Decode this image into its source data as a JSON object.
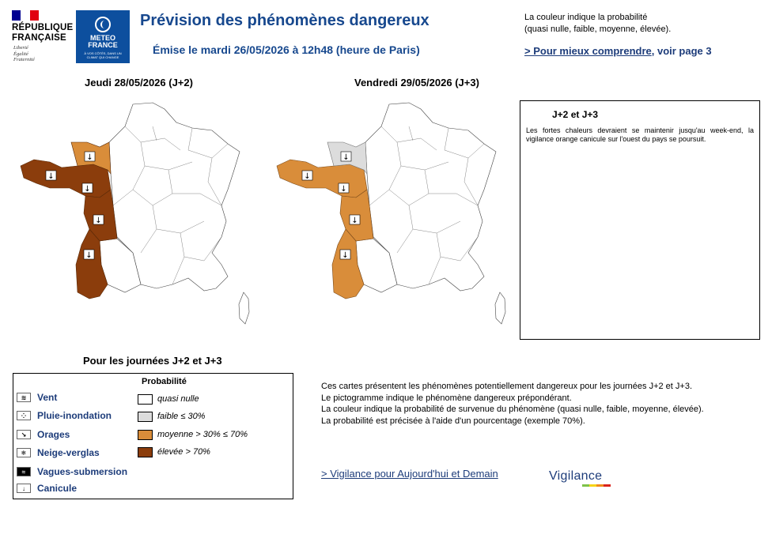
{
  "header": {
    "republic_line1": "RÉPUBLIQUE",
    "republic_line2": "FRANÇAISE",
    "motto": [
      "Liberté",
      "Égalité",
      "Fraternité"
    ],
    "logo_line1": "METEO",
    "logo_line2": "FRANCE",
    "logo_tagline": "À VOS CÔTÉS, DANS UN CLIMAT QUI CHANGE",
    "title": "Prévision des phénomènes dangereux",
    "emitted": "Émise le mardi 26/05/2026 à 12h48 (heure de Paris)"
  },
  "top_legend": {
    "line1": "La couleur indique la probabilité",
    "line2": "(quasi nulle, faible, moyenne, élevée).",
    "link_text": "> Pour mieux comprendre",
    "link_suffix": ", voir page 3"
  },
  "maps": [
    {
      "title": "Jeudi 28/05/2026 (J+2)"
    },
    {
      "title": "Vendredi 29/05/2026 (J+3)"
    }
  ],
  "comment": {
    "title": "J+2 et J+3",
    "body": "Les fortes chaleurs devraient se maintenir jusqu'au week-end, la vigilance orange canicule sur l'ouest du pays se poursuit."
  },
  "legend": {
    "title": "Pour les journées J+2 et J+3",
    "prob_title": "Probabilité",
    "phenomena": [
      {
        "label": "Vent",
        "icon": "wind-icon"
      },
      {
        "label": "Pluie-inondation",
        "icon": "rain-flood-icon"
      },
      {
        "label": "Orages",
        "icon": "thunderstorm-icon"
      },
      {
        "label": "Neige-verglas",
        "icon": "snow-ice-icon"
      },
      {
        "label": "Vagues-submersion",
        "icon": "waves-icon"
      },
      {
        "label": "Canicule",
        "icon": "thermometer-icon"
      }
    ],
    "probabilities": [
      {
        "label": "quasi nulle",
        "color": "#ffffff"
      },
      {
        "label": "faible ≤ 30%",
        "color": "#dcdcdc"
      },
      {
        "label": "moyenne > 30% ≤ 70%",
        "color": "#d98d3a"
      },
      {
        "label": "élevée > 70%",
        "color": "#8b3d0c"
      }
    ]
  },
  "info": {
    "p1": "Ces cartes présentent les phénomènes potentiellement dangereux pour les journées J+2 et J+3.",
    "p2": "Le pictogramme indique le phénomène dangereux prépondérant.",
    "p3": "La couleur indique la probabilité de survenue du phénomène (quasi nulle, faible, moyenne, élevée).",
    "p4": "La probabilité est précisée à l'aide d'un pourcentage (exemple 70%).",
    "link": "> Vigilance pour Aujourd'hui et Demain",
    "vigilance_logo": "Vigilance"
  },
  "colors": {
    "brand_blue": "#17488e",
    "link_blue": "#1d3c7a",
    "high": "#8b3d0c",
    "medium": "#d98d3a",
    "low": "#dcdcdc",
    "none": "#ffffff"
  }
}
